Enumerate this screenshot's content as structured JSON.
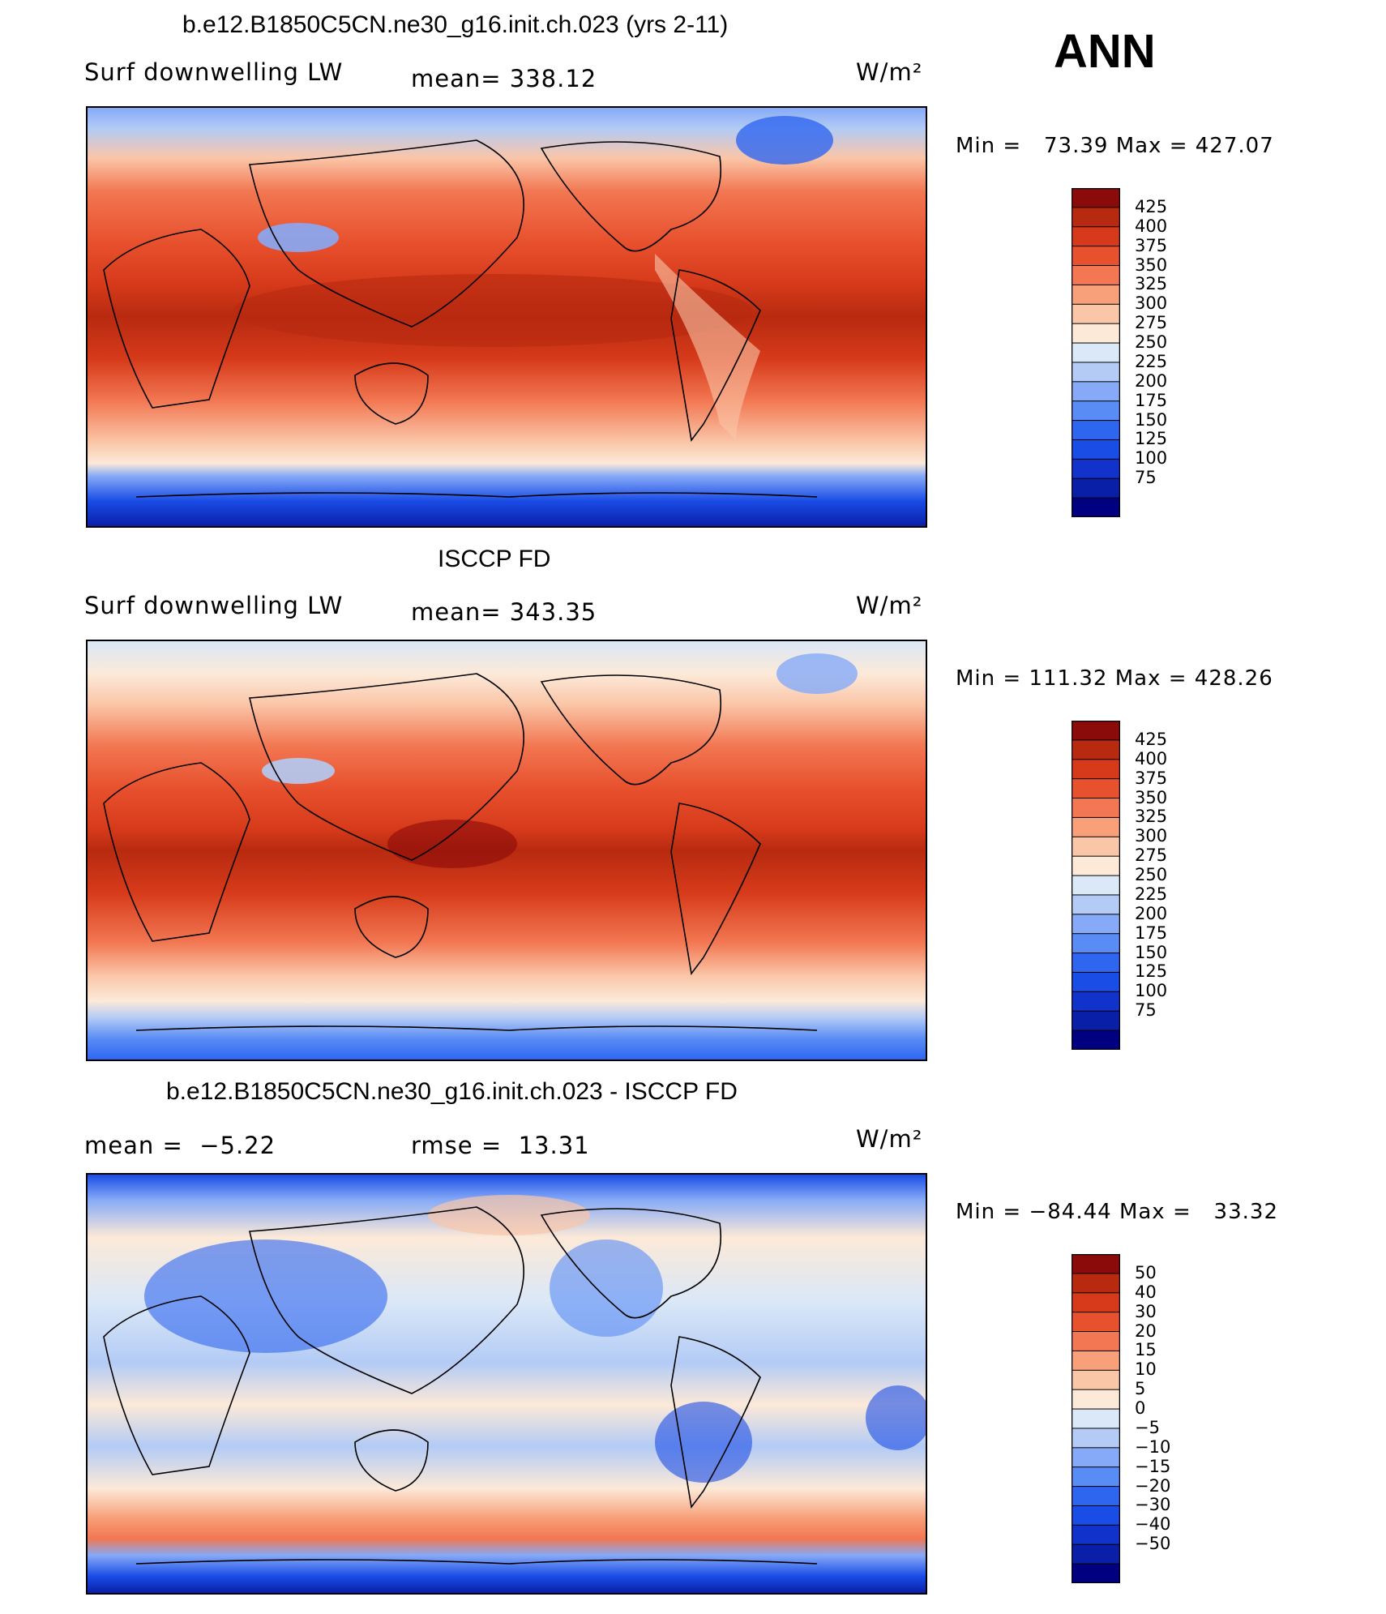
{
  "season": "ANN",
  "colors": {
    "abs_levels": [
      "#000080",
      "#0a1fa8",
      "#1232cc",
      "#1a4ce6",
      "#2f66f0",
      "#5a8cf5",
      "#86aaf7",
      "#b3cbf5",
      "#dbe8f7",
      "#fce9d8",
      "#fac6a8",
      "#f7a07a",
      "#f27752",
      "#e8512e",
      "#d63a1a",
      "#b82a10",
      "#8b0a0a"
    ],
    "diff_levels": [
      "#000080",
      "#0a1fa8",
      "#1232cc",
      "#1a4ce6",
      "#2f66f0",
      "#5a8cf5",
      "#86aaf7",
      "#b3cbf5",
      "#dbe8f7",
      "#fce9d8",
      "#fac6a8",
      "#f7a07a",
      "#f27752",
      "#e8512e",
      "#d63a1a",
      "#b82a10",
      "#8b0a0a"
    ]
  },
  "chart_data": [
    {
      "type": "heatmap",
      "title": "b.e12.B1850C5CN.ne30_g16.init.ch.023 (yrs 2-11)",
      "variable": "Surf downwelling LW",
      "stat_label": "mean=",
      "stat_value": "338.12",
      "units": "W/m²",
      "min_label": "Min =",
      "min_value": "73.39",
      "max_label": "Max =",
      "max_value": "427.07",
      "colorbar": [
        "425",
        "400",
        "375",
        "350",
        "325",
        "300",
        "275",
        "250",
        "225",
        "200",
        "175",
        "150",
        "125",
        "100",
        "75"
      ]
    },
    {
      "type": "heatmap",
      "title": "ISCCP FD",
      "variable": "Surf downwelling LW",
      "stat_label": "mean=",
      "stat_value": "343.35",
      "units": "W/m²",
      "min_label": "Min =",
      "min_value": "111.32",
      "max_label": "Max =",
      "max_value": "428.26",
      "colorbar": [
        "425",
        "400",
        "375",
        "350",
        "325",
        "300",
        "275",
        "250",
        "225",
        "200",
        "175",
        "150",
        "125",
        "100",
        "75"
      ]
    },
    {
      "type": "heatmap",
      "title": "b.e12.B1850C5CN.ne30_g16.init.ch.023 - ISCCP FD",
      "variable": "",
      "stat_label": "mean =",
      "stat_value": "−5.22",
      "stat2_label": "rmse =",
      "stat2_value": "13.31",
      "units": "W/m²",
      "min_label": "Min =",
      "min_value": "−84.44",
      "max_label": "Max =",
      "max_value": "33.32",
      "colorbar": [
        "50",
        "40",
        "30",
        "20",
        "15",
        "10",
        "5",
        "0",
        "−5",
        "−10",
        "−15",
        "−20",
        "−30",
        "−40",
        "−50"
      ]
    }
  ]
}
